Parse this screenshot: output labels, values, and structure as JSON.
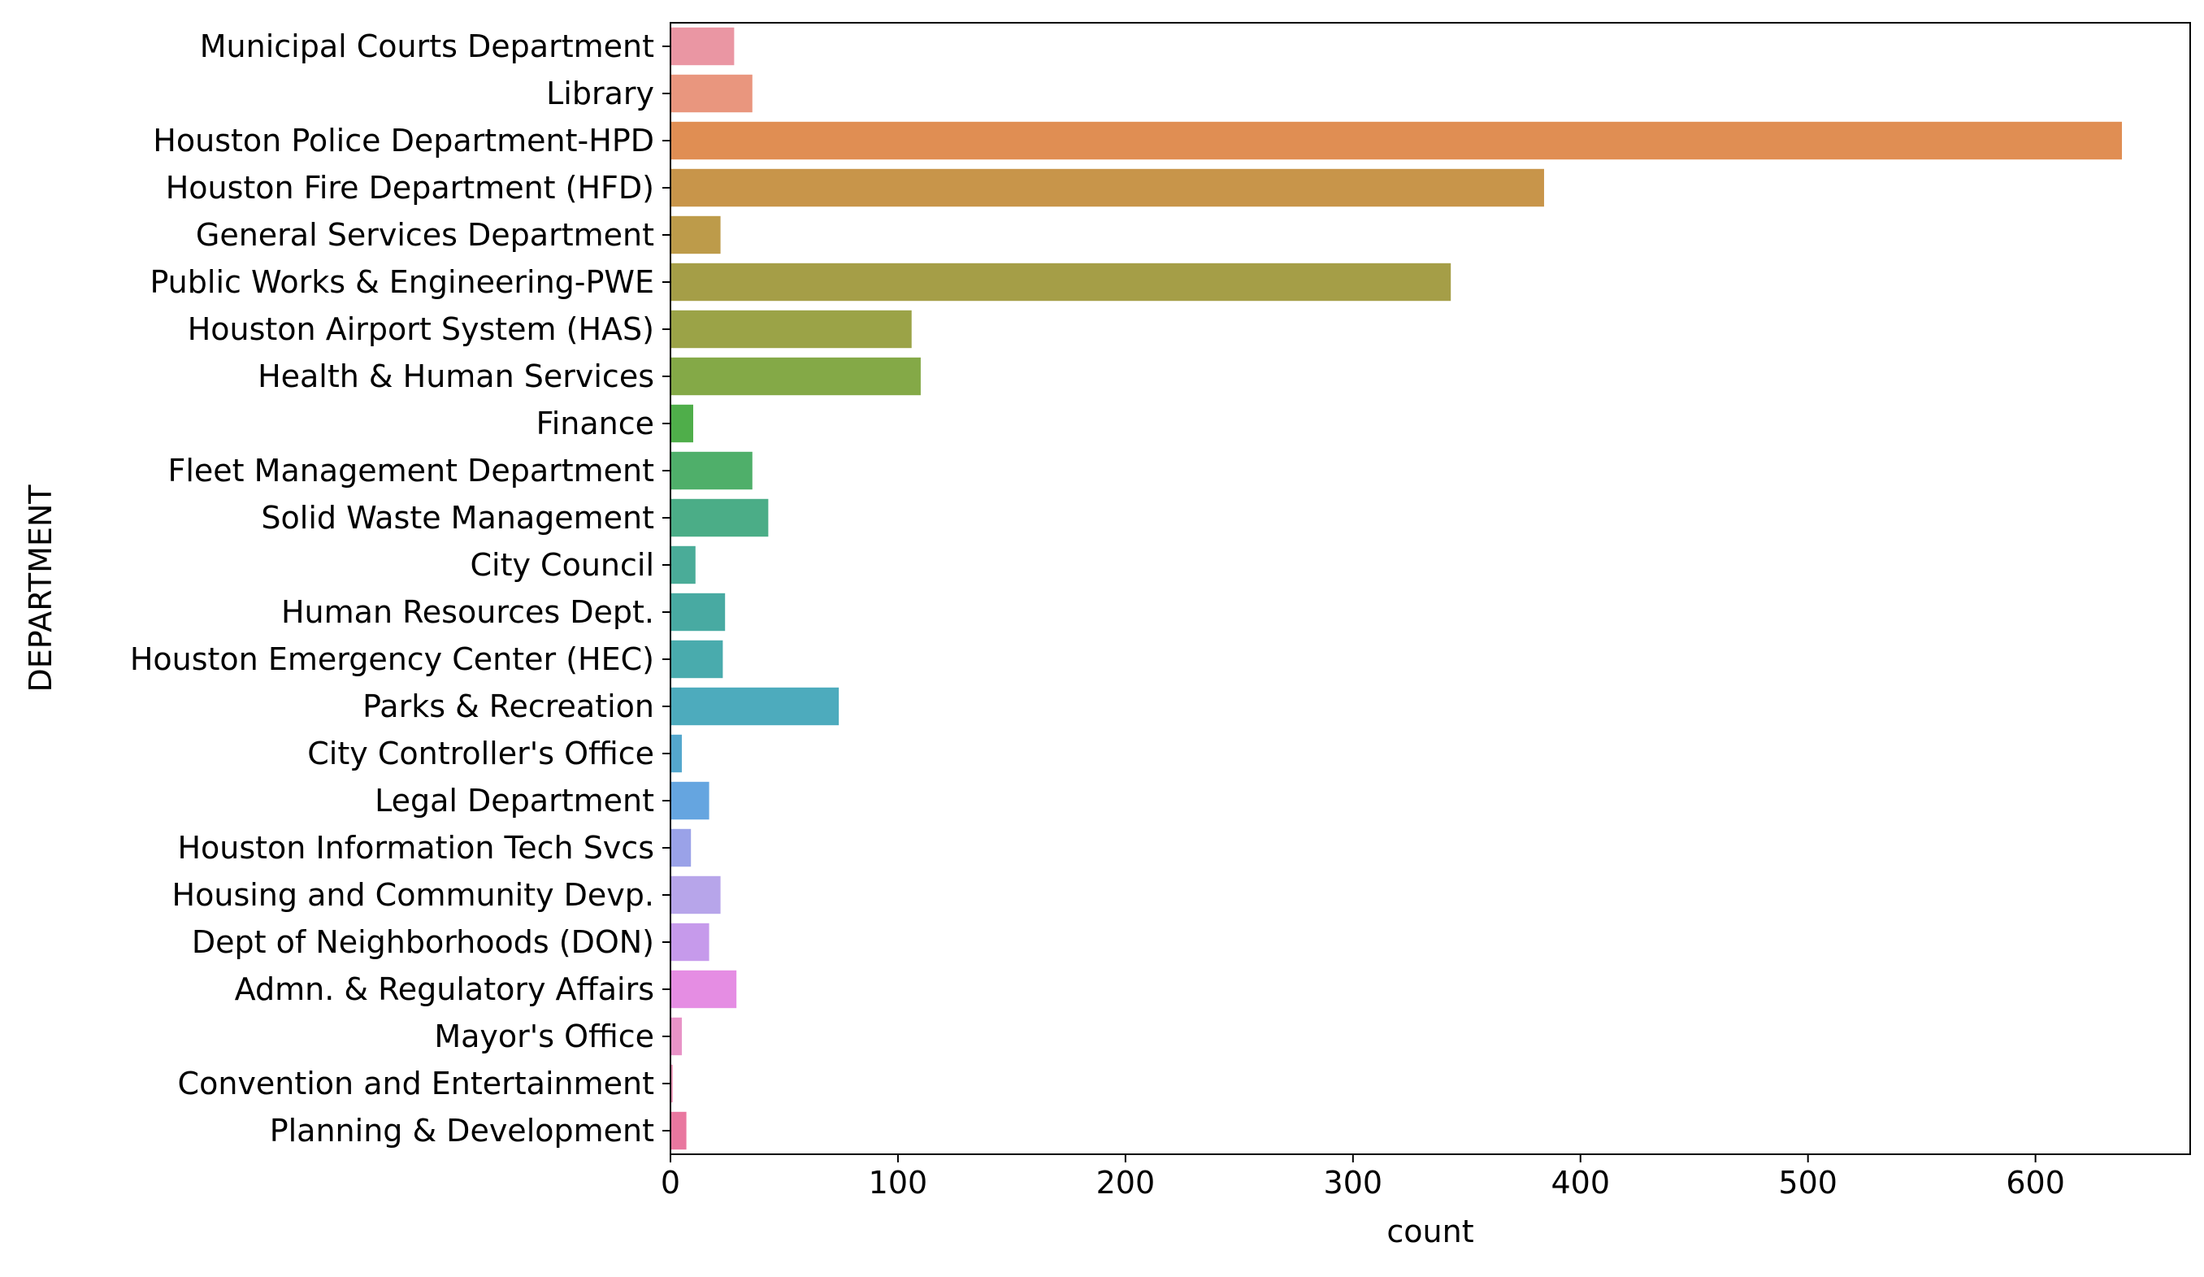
{
  "chart_data": {
    "type": "bar",
    "orientation": "horizontal",
    "title": "",
    "xlabel": "count",
    "ylabel": "DEPARTMENT",
    "xlim": [
      0,
      668
    ],
    "x_ticks": [
      0,
      100,
      200,
      300,
      400,
      500,
      600
    ],
    "grid": false,
    "legend": "none",
    "categories": [
      "Municipal Courts Department",
      "Library",
      "Houston Police Department-HPD",
      "Houston Fire Department (HFD)",
      "General Services Department",
      "Public Works & Engineering-PWE",
      "Houston Airport System (HAS)",
      "Health & Human Services",
      "Finance",
      "Fleet Management Department",
      "Solid Waste Management",
      "City Council",
      "Human Resources Dept.",
      "Houston Emergency Center (HEC)",
      "Parks & Recreation",
      "City Controller's Office",
      "Legal Department",
      "Houston Information Tech Svcs",
      "Housing and Community Devp.",
      "Dept of Neighborhoods (DON)",
      "Admn. & Regulatory Affairs",
      "Mayor's Office",
      "Convention and Entertainment",
      "Planning & Development"
    ],
    "values": [
      28,
      36,
      638,
      384,
      22,
      343,
      106,
      110,
      10,
      36,
      43,
      11,
      24,
      23,
      74,
      5,
      17,
      9,
      22,
      17,
      29,
      5,
      1,
      7
    ],
    "colors": [
      "#ea96a3",
      "#e9967e",
      "#e08e53",
      "#c8954a",
      "#bd9b4a",
      "#a59e47",
      "#9ba347",
      "#84a947",
      "#4fae4a",
      "#4faf6a",
      "#4bad87",
      "#4aac98",
      "#48aaa2",
      "#49abad",
      "#4dabbd",
      "#54a7cd",
      "#65a5e0",
      "#9aa2e8",
      "#b7a5ea",
      "#c69aeb",
      "#e58de3",
      "#e893c7",
      "#e993b4",
      "#e9779f"
    ]
  }
}
